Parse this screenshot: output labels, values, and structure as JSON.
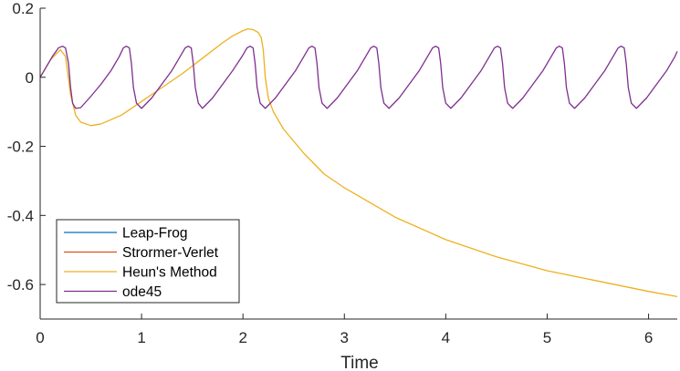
{
  "chart_data": {
    "type": "line",
    "title": "",
    "xlabel": "Time",
    "ylabel": "",
    "xlim": [
      0,
      6.283
    ],
    "ylim": [
      -0.7,
      0.2
    ],
    "xticks": [
      0,
      1,
      2,
      3,
      4,
      5,
      6
    ],
    "yticks": [
      0.2,
      0,
      -0.2,
      -0.4,
      -0.6
    ],
    "ytick_labels": [
      "0.2",
      "0",
      "-0.2",
      "-0.4",
      "-0.6"
    ],
    "grid": false,
    "legend_position": "bottom-left",
    "colors": {
      "axes": "#262626",
      "leap_frog": "#0072BD",
      "stormer_verlet": "#D95319",
      "heun": "#EDB120",
      "ode45": "#7E2F8E"
    },
    "series": [
      {
        "name": "Leap-Frog",
        "color": "#0072BD",
        "x": [],
        "y": []
      },
      {
        "name": "Strormer-Verlet",
        "color": "#D95319",
        "x": [],
        "y": []
      },
      {
        "name": "Heun's Method",
        "color": "#EDB120",
        "x": [
          0,
          0.1,
          0.2,
          0.25,
          0.3,
          0.35,
          0.4,
          0.5,
          0.6,
          0.8,
          1.0,
          1.2,
          1.4,
          1.6,
          1.8,
          1.9,
          2.0,
          2.05,
          2.1,
          2.15,
          2.18,
          2.2,
          2.22,
          2.25,
          2.3,
          2.4,
          2.6,
          2.8,
          3.0,
          3.5,
          4.0,
          4.5,
          5.0,
          5.5,
          6.0,
          6.283
        ],
        "y": [
          0,
          0.05,
          0.08,
          0.06,
          -0.05,
          -0.11,
          -0.13,
          -0.14,
          -0.135,
          -0.11,
          -0.07,
          -0.03,
          0.01,
          0.055,
          0.1,
          0.12,
          0.135,
          0.14,
          0.138,
          0.13,
          0.115,
          0.08,
          0.0,
          -0.06,
          -0.1,
          -0.15,
          -0.22,
          -0.28,
          -0.32,
          -0.405,
          -0.47,
          -0.52,
          -0.56,
          -0.59,
          -0.62,
          -0.635
        ]
      },
      {
        "name": "ode45",
        "color": "#7E2F8E",
        "x": [
          0,
          0.06,
          0.12,
          0.18,
          0.22,
          0.25,
          0.28,
          0.3,
          0.32,
          0.35,
          0.4,
          0.5,
          0.6,
          0.7,
          0.78,
          0.82,
          0.85,
          0.88,
          0.9,
          0.92,
          0.95,
          1.0,
          1.1,
          1.2,
          1.3,
          1.38,
          1.43,
          1.46,
          1.49,
          1.51,
          1.53,
          1.56,
          1.6,
          1.7,
          1.8,
          1.9,
          1.99,
          2.04,
          2.07,
          2.1,
          2.12,
          2.14,
          2.17,
          2.22,
          2.32,
          2.42,
          2.52,
          2.6,
          2.65,
          2.68,
          2.71,
          2.73,
          2.75,
          2.78,
          2.83,
          2.93,
          3.03,
          3.13,
          3.21,
          3.26,
          3.29,
          3.32,
          3.34,
          3.36,
          3.39,
          3.44,
          3.54,
          3.64,
          3.74,
          3.82,
          3.87,
          3.9,
          3.93,
          3.95,
          3.97,
          4.0,
          4.05,
          4.15,
          4.25,
          4.35,
          4.43,
          4.48,
          4.51,
          4.54,
          4.56,
          4.58,
          4.61,
          4.66,
          4.76,
          4.86,
          4.96,
          5.04,
          5.09,
          5.12,
          5.15,
          5.17,
          5.19,
          5.22,
          5.27,
          5.37,
          5.47,
          5.57,
          5.65,
          5.7,
          5.73,
          5.76,
          5.78,
          5.8,
          5.83,
          5.88,
          5.98,
          6.08,
          6.18,
          6.26,
          6.283
        ],
        "y": [
          0,
          0.03,
          0.06,
          0.085,
          0.09,
          0.085,
          0.04,
          -0.03,
          -0.075,
          -0.09,
          -0.088,
          -0.055,
          -0.02,
          0.02,
          0.06,
          0.085,
          0.09,
          0.085,
          0.04,
          -0.03,
          -0.075,
          -0.09,
          -0.06,
          -0.02,
          0.02,
          0.06,
          0.085,
          0.09,
          0.085,
          0.04,
          -0.03,
          -0.075,
          -0.09,
          -0.06,
          -0.02,
          0.02,
          0.06,
          0.085,
          0.09,
          0.085,
          0.04,
          -0.03,
          -0.075,
          -0.09,
          -0.06,
          -0.02,
          0.02,
          0.06,
          0.085,
          0.09,
          0.085,
          0.04,
          -0.03,
          -0.075,
          -0.09,
          -0.06,
          -0.02,
          0.02,
          0.06,
          0.085,
          0.09,
          0.085,
          0.04,
          -0.03,
          -0.075,
          -0.09,
          -0.06,
          -0.02,
          0.02,
          0.06,
          0.085,
          0.09,
          0.085,
          0.04,
          -0.03,
          -0.075,
          -0.09,
          -0.06,
          -0.02,
          0.02,
          0.06,
          0.085,
          0.09,
          0.085,
          0.04,
          -0.03,
          -0.075,
          -0.09,
          -0.06,
          -0.02,
          0.02,
          0.06,
          0.085,
          0.09,
          0.085,
          0.04,
          -0.03,
          -0.075,
          -0.09,
          -0.06,
          -0.02,
          0.02,
          0.06,
          0.085,
          0.09,
          0.085,
          0.04,
          -0.03,
          -0.075,
          -0.09,
          -0.06,
          -0.02,
          0.02,
          0.06,
          0.075
        ]
      }
    ]
  }
}
